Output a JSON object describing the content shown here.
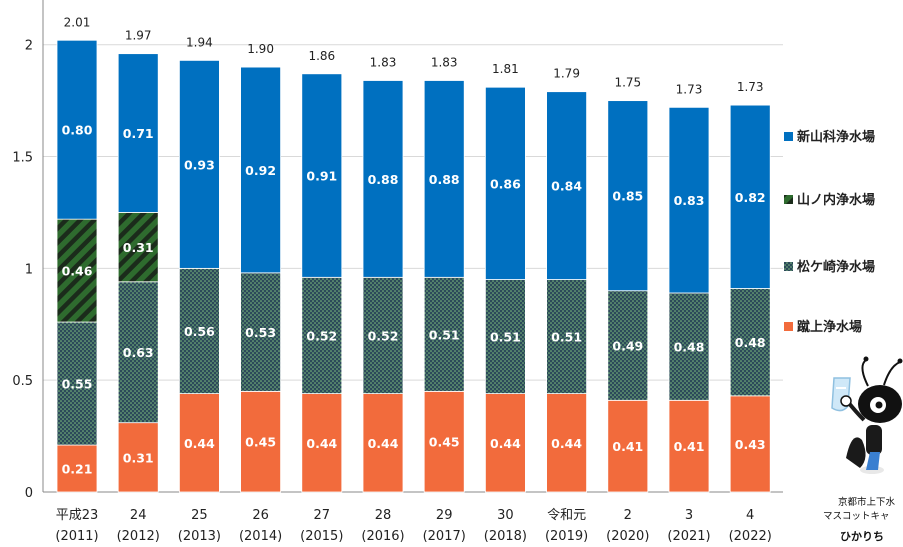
{
  "chart_data": {
    "type": "bar",
    "stacked": true,
    "ylim": [
      0,
      2.2
    ],
    "yticks": [
      "0",
      "0.5",
      "1",
      "1.5",
      "2"
    ],
    "grid": true,
    "legend_position": "right",
    "categories": [
      [
        "平成23",
        "(2011)"
      ],
      [
        "24",
        "(2012)"
      ],
      [
        "25",
        "(2013)"
      ],
      [
        "26",
        "(2014)"
      ],
      [
        "27",
        "(2015)"
      ],
      [
        "28",
        "(2016)"
      ],
      [
        "29",
        "(2017)"
      ],
      [
        "30",
        "(2018)"
      ],
      [
        "令和元",
        "(2019)"
      ],
      [
        "2",
        "(2020)"
      ],
      [
        "3",
        "(2021)"
      ],
      [
        "4",
        "(2022)"
      ]
    ],
    "series": [
      {
        "name": "蹴上浄水場",
        "color": "#f26b3c",
        "pattern": "solid",
        "values": [
          0.21,
          0.31,
          0.44,
          0.45,
          0.44,
          0.44,
          0.45,
          0.44,
          0.44,
          0.41,
          0.41,
          0.43
        ]
      },
      {
        "name": "松ケ崎浄水場",
        "color": "#2c4a5a",
        "pattern": "dots",
        "values": [
          0.55,
          0.63,
          0.56,
          0.53,
          0.52,
          0.52,
          0.51,
          0.51,
          0.51,
          0.49,
          0.48,
          0.48
        ]
      },
      {
        "name": "山ノ内浄水場",
        "color": "#2e6b2e",
        "pattern": "stripes",
        "values": [
          0.46,
          0.31,
          null,
          null,
          null,
          null,
          null,
          null,
          null,
          null,
          null,
          null
        ]
      },
      {
        "name": "新山科浄水場",
        "color": "#0070c0",
        "pattern": "solid",
        "values": [
          0.8,
          0.71,
          0.93,
          0.92,
          0.91,
          0.88,
          0.88,
          0.86,
          0.84,
          0.85,
          0.83,
          0.82
        ]
      }
    ],
    "totals": [
      2.01,
      1.97,
      1.94,
      1.9,
      1.86,
      1.83,
      1.83,
      1.81,
      1.79,
      1.75,
      1.73,
      1.73
    ],
    "legend_order": [
      "新山科浄水場",
      "山ノ内浄水場",
      "松ケ崎浄水場",
      "蹴上浄水場"
    ]
  },
  "mascot": {
    "caption_line1": "京都市上下水",
    "caption_line2": "マスコットキャ",
    "name": "ひかりち"
  }
}
